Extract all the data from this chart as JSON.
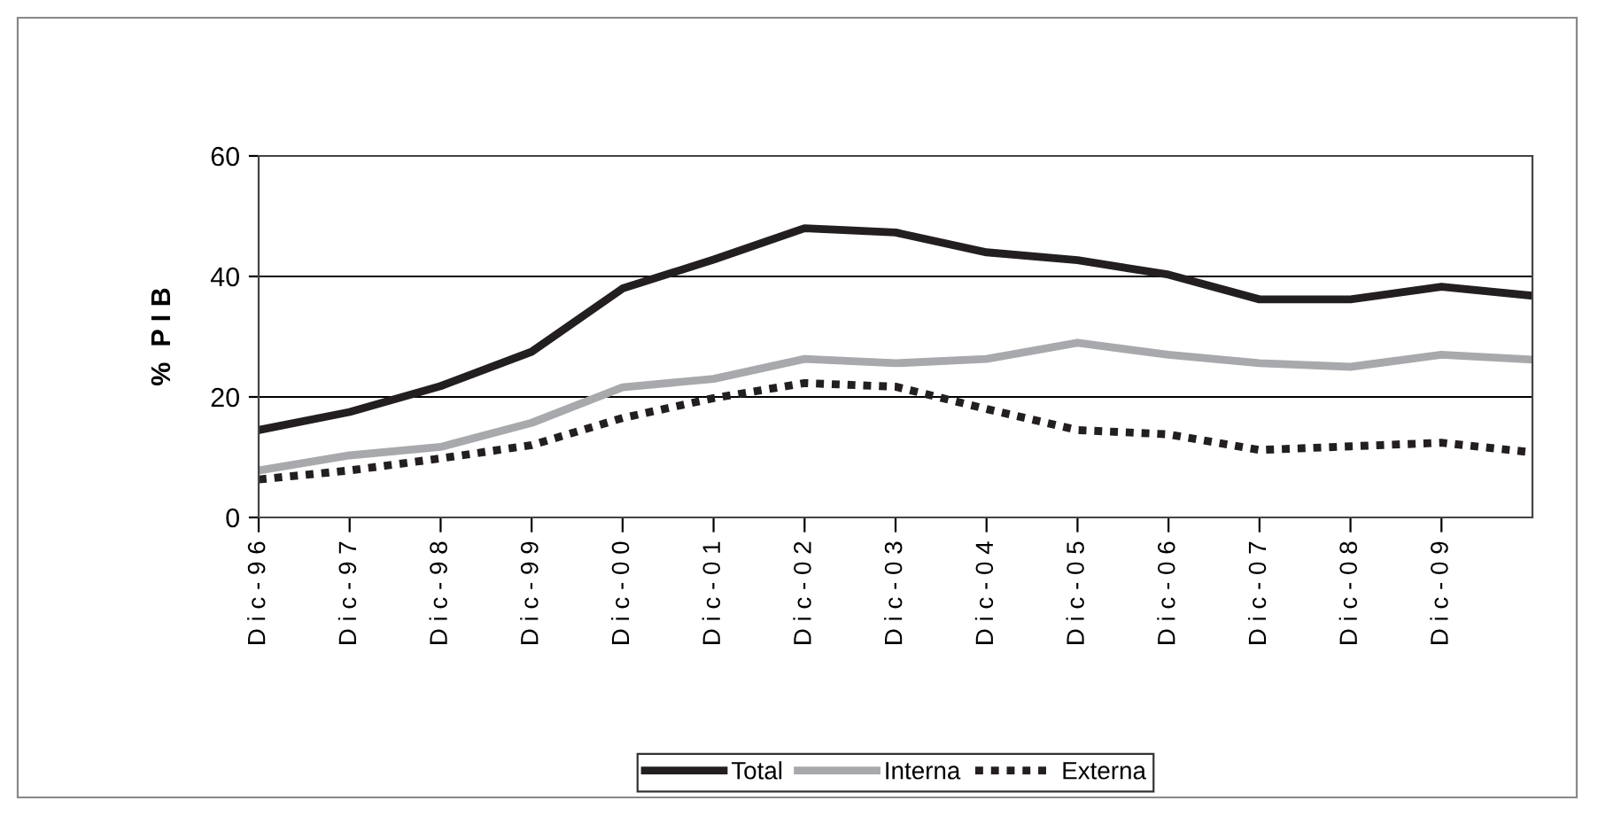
{
  "chart_data": {
    "type": "line",
    "ylabel": "%  P I B",
    "categories": [
      "D i c - 9 6",
      "D i c - 9 7",
      "D i c - 9 8",
      "D i c - 9 9",
      "D i c - 0 0",
      "D i c - 0 1",
      "D i c - 0 2",
      "D i c - 0 3",
      "D i c - 0 4",
      "D i c - 0 5",
      "D i c - 0 6",
      "D i c - 0 7",
      "D i c - 0 8",
      "D i c - 0 9",
      null
    ],
    "ylim": [
      0,
      60
    ],
    "yticks": [
      0,
      20,
      40,
      60
    ],
    "grid": "y",
    "legend": "bottom",
    "series": [
      {
        "name": "Total",
        "color": "#231f20",
        "line_style": "solid",
        "values": [
          14.5,
          17.5,
          21.8,
          27.5,
          38,
          42.8,
          48,
          47.3,
          44,
          42.7,
          40.3,
          36.2,
          36.2,
          38.3,
          36.8
        ]
      },
      {
        "name": "Interna",
        "color": "#a7a9ac",
        "line_style": "solid",
        "values": [
          7.8,
          10.3,
          11.7,
          15.7,
          21.6,
          23,
          26.3,
          25.6,
          26.3,
          29,
          27,
          25.6,
          25,
          27,
          26.2
        ]
      },
      {
        "name": "Externa",
        "color": "#231f20",
        "line_style": "dotted",
        "values": [
          6.3,
          7.8,
          9.8,
          12,
          16.5,
          19.8,
          22.3,
          21.7,
          18,
          14.5,
          13.8,
          11.2,
          11.8,
          12.4,
          10.8
        ]
      }
    ]
  }
}
